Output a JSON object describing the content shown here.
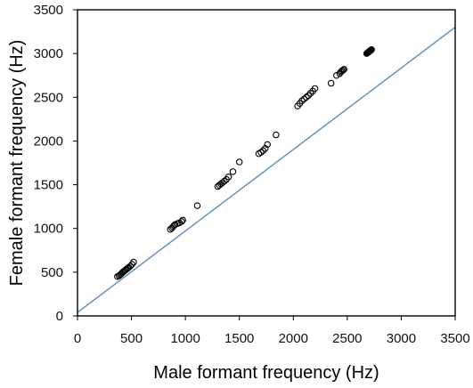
{
  "chart_data": {
    "type": "scatter",
    "title": "",
    "xlabel": "Male formant frequency (Hz)",
    "ylabel": "Female formant frequency (Hz)",
    "xlim": [
      0,
      3500
    ],
    "ylim": [
      0,
      3500
    ],
    "xticks": [
      0,
      500,
      1000,
      1500,
      2000,
      2500,
      3000,
      3500
    ],
    "yticks": [
      0,
      500,
      1000,
      1500,
      2000,
      2500,
      3000,
      3500
    ],
    "grid": false,
    "legend": "none",
    "reference_line": {
      "from": [
        0,
        40
      ],
      "to": [
        3500,
        3300
      ],
      "color": "#5b8db8"
    },
    "marker": {
      "shape": "open-circle",
      "color": "#000000"
    },
    "series": [
      {
        "x": [
          370,
          385,
          395,
          405,
          415,
          425,
          435,
          445,
          455,
          465,
          475,
          490,
          505,
          520,
          860,
          875,
          885,
          895,
          905,
          925,
          945,
          965,
          975,
          1110,
          1300,
          1315,
          1330,
          1345,
          1360,
          1380,
          1400,
          1440,
          1500,
          1680,
          1700,
          1720,
          1740,
          1760,
          1840,
          2040,
          2060,
          2080,
          2100,
          2120,
          2140,
          2160,
          2180,
          2200,
          2350,
          2400,
          2430,
          2440,
          2450,
          2460,
          2470,
          2680,
          2685,
          2690,
          2695,
          2700,
          2705,
          2710,
          2715,
          2720,
          2725
        ],
        "y": [
          450,
          460,
          470,
          480,
          495,
          505,
          515,
          525,
          535,
          545,
          555,
          570,
          590,
          615,
          990,
          1005,
          1020,
          1035,
          1045,
          1055,
          1065,
          1080,
          1095,
          1260,
          1480,
          1495,
          1510,
          1525,
          1540,
          1560,
          1590,
          1650,
          1760,
          1855,
          1870,
          1890,
          1915,
          1960,
          2070,
          2400,
          2430,
          2460,
          2480,
          2500,
          2520,
          2545,
          2570,
          2600,
          2660,
          2750,
          2770,
          2790,
          2800,
          2810,
          2820,
          3000,
          3005,
          3010,
          3015,
          3020,
          3025,
          3030,
          3035,
          3040,
          3045
        ]
      }
    ]
  }
}
